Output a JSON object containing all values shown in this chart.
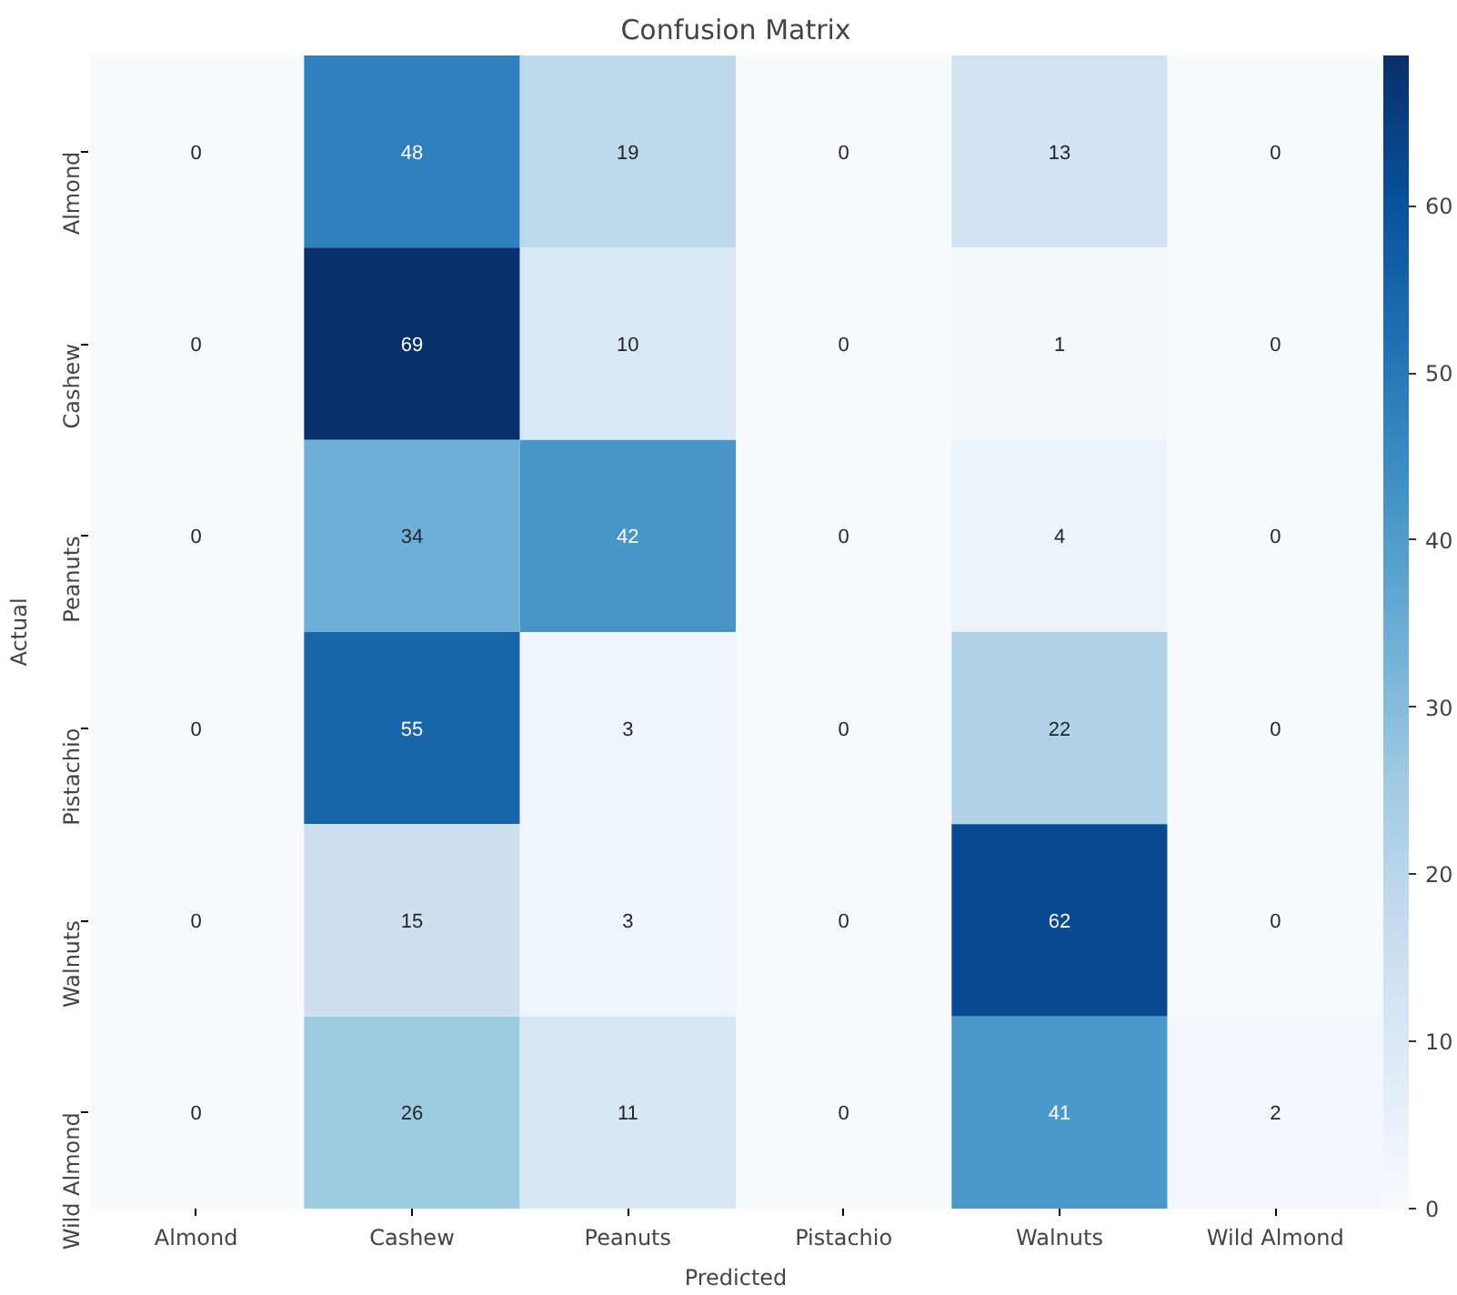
{
  "chart_data": {
    "type": "heatmap",
    "title": "Confusion Matrix",
    "xlabel": "Predicted",
    "ylabel": "Actual",
    "categories": [
      "Almond",
      "Cashew",
      "Peanuts",
      "Pistachio",
      "Walnuts",
      "Wild Almond"
    ],
    "y_categories": [
      "Almond",
      "Cashew",
      "Peanuts",
      "Pistachio",
      "Walnuts",
      "Wild Almond"
    ],
    "cells": [
      [
        0,
        48,
        19,
        0,
        13,
        0
      ],
      [
        0,
        69,
        10,
        0,
        1,
        0
      ],
      [
        0,
        34,
        42,
        0,
        4,
        0
      ],
      [
        0,
        55,
        3,
        0,
        22,
        0
      ],
      [
        0,
        15,
        3,
        0,
        62,
        0
      ],
      [
        0,
        26,
        11,
        0,
        41,
        2
      ]
    ],
    "clim": [
      0,
      69
    ],
    "cticks": [
      0,
      10,
      20,
      30,
      40,
      50,
      60
    ],
    "data_labels": true
  }
}
